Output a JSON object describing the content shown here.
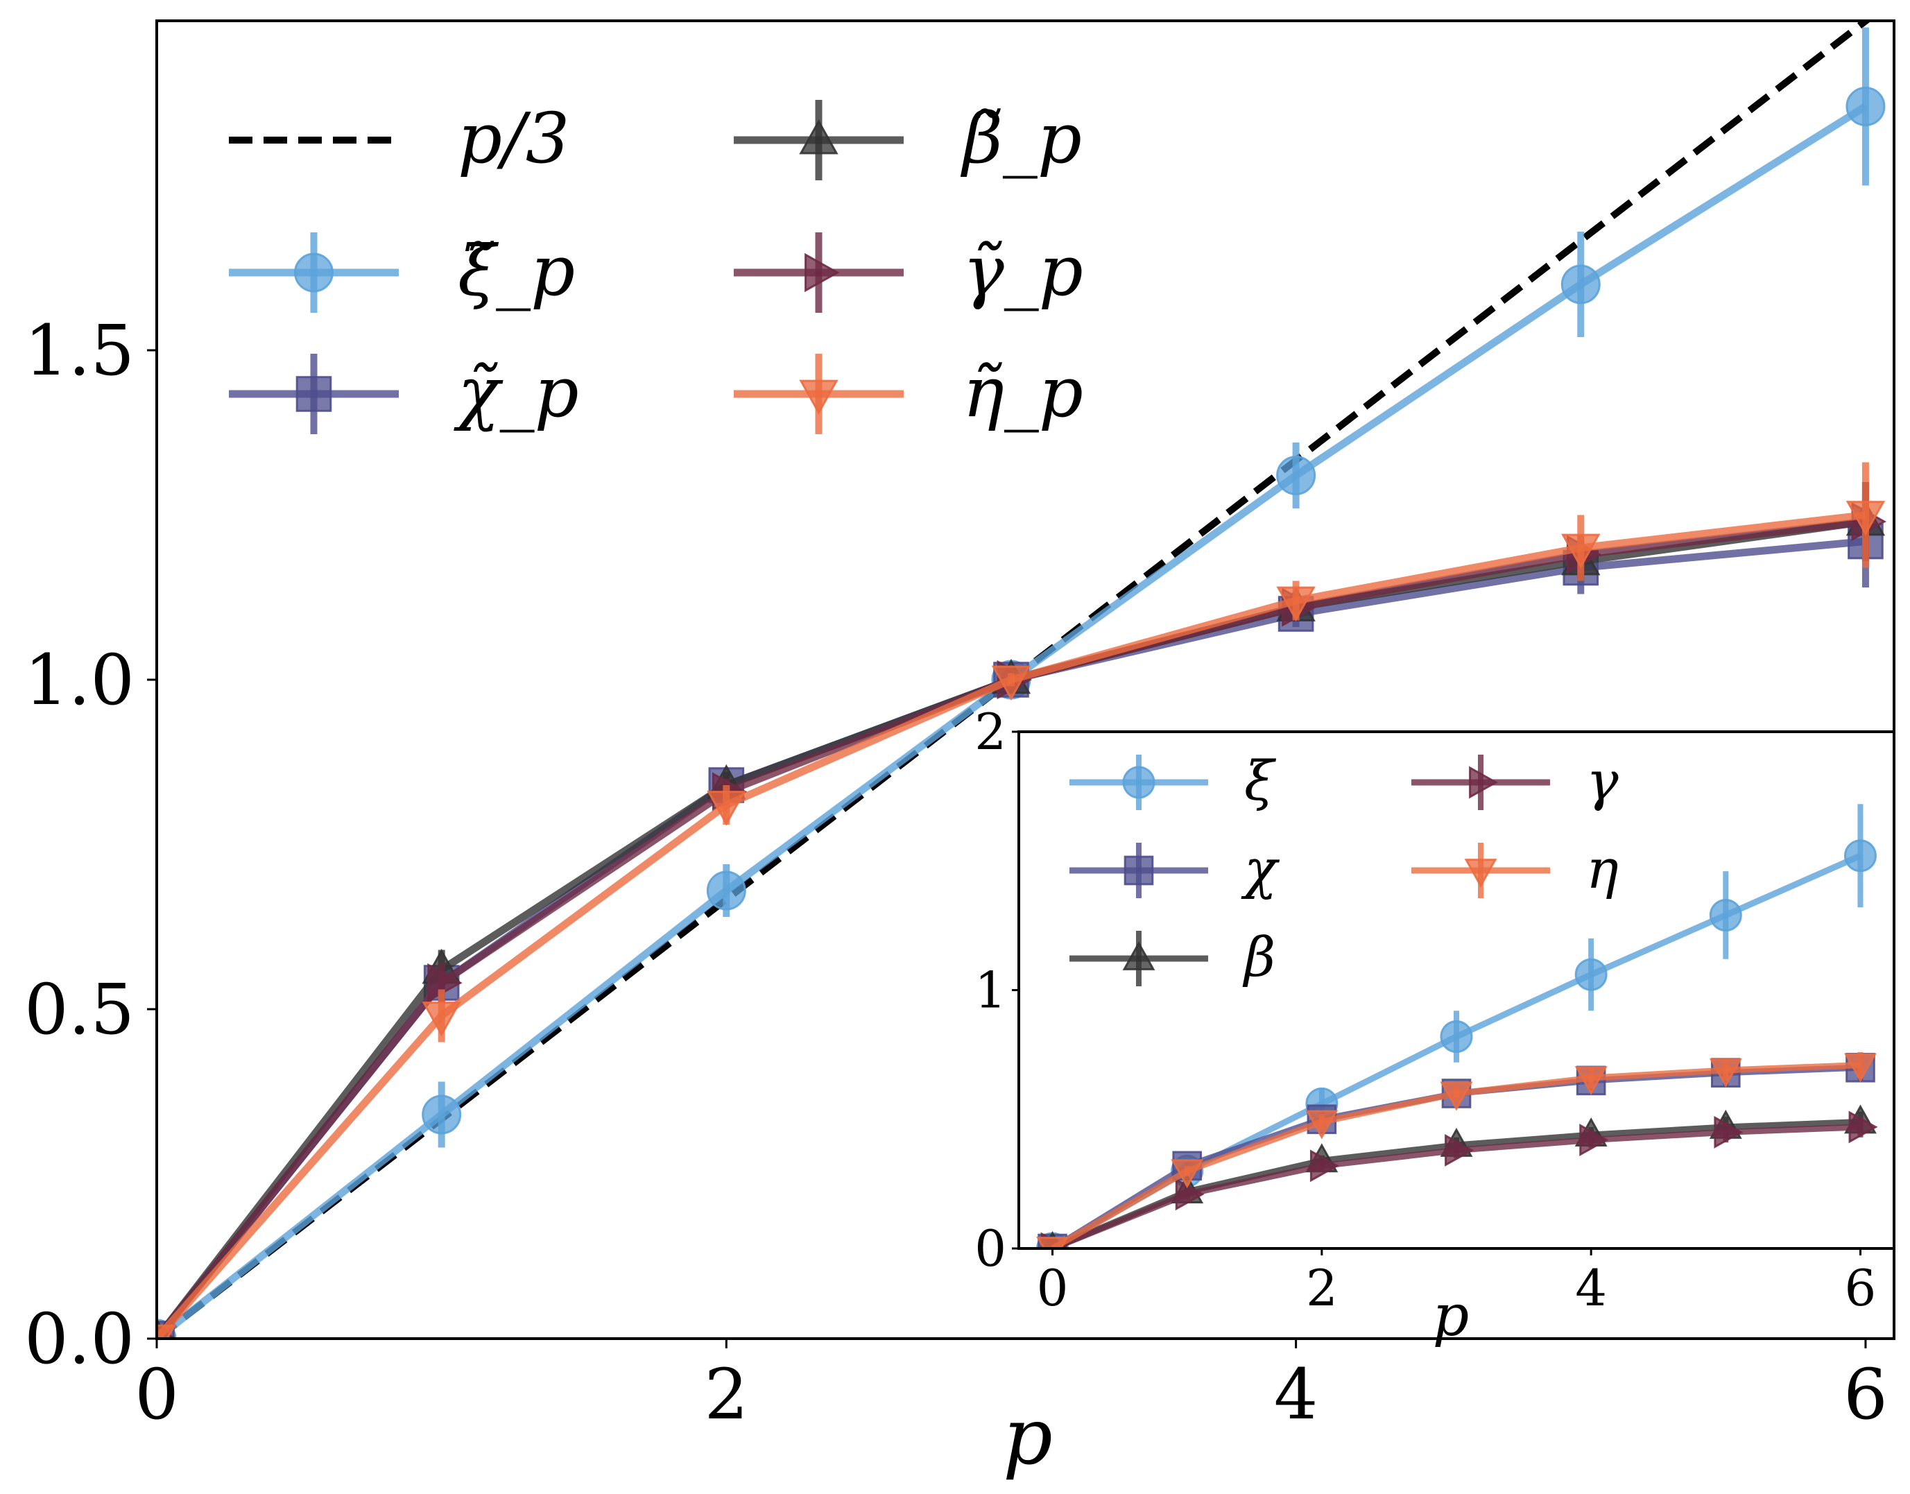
{
  "chart_data": [
    {
      "id": "main",
      "type": "line",
      "xlabel": "p",
      "ylabel": "",
      "xlim": [
        0,
        6.1
      ],
      "ylim": [
        0,
        2.0
      ],
      "xticks": [
        0,
        2,
        4,
        6
      ],
      "xtick_labels": [
        "0",
        "2",
        "4",
        "6"
      ],
      "yticks": [
        0,
        0.5,
        1.0,
        1.5
      ],
      "ytick_labels": [
        "0.0",
        "0.5",
        "1.0",
        "1.5"
      ],
      "legend_position": "top-left",
      "reference": {
        "name": "p/3",
        "color": "#000000",
        "style": "dashed",
        "x": [
          0,
          6.1
        ],
        "y": [
          0,
          2.033
        ]
      },
      "x": [
        0,
        1,
        2,
        3,
        4,
        5,
        6
      ],
      "series": [
        {
          "key": "xi",
          "name": "ξ̃_p",
          "marker": "circle",
          "color": "#5ba3d9",
          "values": [
            0,
            0.34,
            0.68,
            1.0,
            1.31,
            1.6,
            1.87
          ],
          "errors": [
            0,
            0.05,
            0.04,
            0.01,
            0.05,
            0.08,
            0.12
          ]
        },
        {
          "key": "chi",
          "name": "χ̃_p",
          "marker": "square",
          "color": "#4e4d8e",
          "values": [
            0,
            0.54,
            0.84,
            1.0,
            1.1,
            1.17,
            1.21
          ],
          "errors": [
            0,
            0.03,
            0.02,
            0.01,
            0.02,
            0.04,
            0.07
          ]
        },
        {
          "key": "beta",
          "name": "β̃_p",
          "marker": "triangle-up",
          "color": "#333333",
          "values": [
            0,
            0.56,
            0.84,
            1.0,
            1.11,
            1.18,
            1.24
          ],
          "errors": [
            0,
            0.03,
            0.02,
            0.01,
            0.02,
            0.03,
            0.06
          ]
        },
        {
          "key": "gamma",
          "name": "γ̃_p",
          "marker": "triangle-right",
          "color": "#6e2a44",
          "values": [
            0,
            0.54,
            0.83,
            1.0,
            1.11,
            1.19,
            1.24
          ],
          "errors": [
            0,
            0.03,
            0.02,
            0.01,
            0.02,
            0.03,
            0.06
          ]
        },
        {
          "key": "eta",
          "name": "η̃_p",
          "marker": "triangle-down",
          "color": "#ec6b3f",
          "values": [
            0,
            0.49,
            0.81,
            1.0,
            1.12,
            1.2,
            1.25
          ],
          "errors": [
            0,
            0.04,
            0.03,
            0.01,
            0.03,
            0.05,
            0.08
          ]
        }
      ]
    },
    {
      "id": "inset",
      "type": "line",
      "xlabel": "p",
      "ylabel": "",
      "xlim": [
        -0.25,
        6.25
      ],
      "ylim": [
        0,
        2
      ],
      "xticks": [
        0,
        2,
        4,
        6
      ],
      "xtick_labels": [
        "0",
        "2",
        "4",
        "6"
      ],
      "yticks": [
        0,
        1,
        2
      ],
      "ytick_labels": [
        "0",
        "1",
        "2"
      ],
      "legend_position": "top-left",
      "x": [
        0,
        1,
        2,
        3,
        4,
        5,
        6
      ],
      "series": [
        {
          "key": "xi",
          "name": "ξ",
          "marker": "circle",
          "color": "#5ba3d9",
          "values": [
            0,
            0.3,
            0.56,
            0.82,
            1.06,
            1.29,
            1.52
          ],
          "errors": [
            0,
            0.03,
            0.06,
            0.1,
            0.14,
            0.17,
            0.2
          ]
        },
        {
          "key": "chi",
          "name": "χ",
          "marker": "square",
          "color": "#4e4d8e",
          "values": [
            0,
            0.32,
            0.5,
            0.6,
            0.65,
            0.68,
            0.7
          ],
          "errors": [
            0,
            0.02,
            0.03,
            0.03,
            0.04,
            0.05,
            0.05
          ]
        },
        {
          "key": "beta",
          "name": "β",
          "marker": "triangle-up",
          "color": "#333333",
          "values": [
            0,
            0.22,
            0.34,
            0.4,
            0.44,
            0.47,
            0.49
          ],
          "errors": [
            0,
            0.02,
            0.02,
            0.03,
            0.03,
            0.04,
            0.04
          ]
        },
        {
          "key": "gamma",
          "name": "γ",
          "marker": "triangle-right",
          "color": "#6e2a44",
          "values": [
            0,
            0.21,
            0.32,
            0.38,
            0.42,
            0.45,
            0.47
          ],
          "errors": [
            0,
            0.02,
            0.02,
            0.03,
            0.03,
            0.04,
            0.04
          ]
        },
        {
          "key": "eta",
          "name": "η",
          "marker": "triangle-down",
          "color": "#ec6b3f",
          "values": [
            0,
            0.3,
            0.49,
            0.6,
            0.66,
            0.69,
            0.71
          ],
          "errors": [
            0,
            0.02,
            0.03,
            0.03,
            0.04,
            0.04,
            0.05
          ]
        }
      ]
    }
  ]
}
